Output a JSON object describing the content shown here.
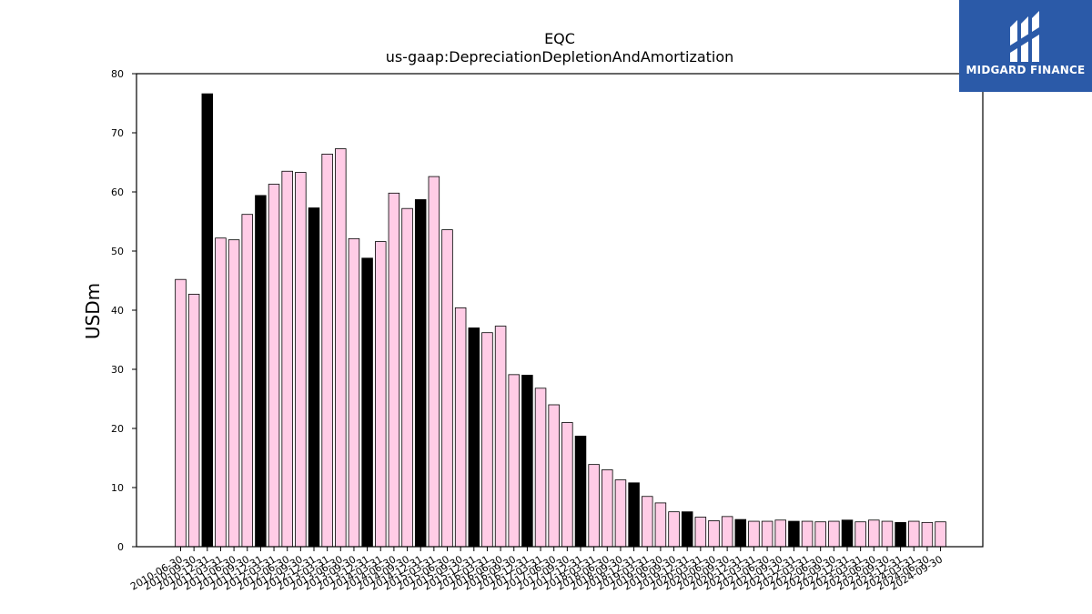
{
  "logo": {
    "text": "MIDGARD FINANCE",
    "background": "#2b5aa8"
  },
  "chart_data": {
    "type": "bar",
    "title": "EQC",
    "subtitle": "us-gaap:DepreciationDepletionAndAmortization",
    "ylabel": "USDm",
    "ylim": [
      0,
      80
    ],
    "yticks": [
      0,
      10,
      20,
      30,
      40,
      50,
      60,
      70,
      80
    ],
    "colors": {
      "quarter": "#ffcce6",
      "year_end": "#000000",
      "edge": "#000000"
    },
    "categories": [
      "2010-06-30",
      "2010-09-30",
      "2010-12-31",
      "2011-03-31",
      "2011-06-30",
      "2011-09-30",
      "2011-12-31",
      "2012-03-31",
      "2012-06-30",
      "2012-09-30",
      "2012-12-31",
      "2013-03-31",
      "2013-06-30",
      "2013-09-30",
      "2013-12-31",
      "2014-03-31",
      "2014-06-30",
      "2014-09-30",
      "2014-12-31",
      "2015-03-31",
      "2015-06-30",
      "2015-09-30",
      "2015-12-31",
      "2016-03-31",
      "2016-06-30",
      "2016-09-30",
      "2016-12-31",
      "2017-03-31",
      "2017-06-30",
      "2017-09-30",
      "2017-12-31",
      "2018-03-31",
      "2018-06-30",
      "2018-09-30",
      "2018-12-31",
      "2019-03-31",
      "2019-06-30",
      "2019-09-30",
      "2019-12-31",
      "2020-03-31",
      "2020-06-30",
      "2020-09-30",
      "2020-12-31",
      "2021-03-31",
      "2021-06-30",
      "2021-09-30",
      "2021-12-31",
      "2022-03-31",
      "2022-06-30",
      "2022-09-30",
      "2022-12-31",
      "2023-03-31",
      "2023-06-30",
      "2023-09-30",
      "2023-12-31",
      "2024-03-31",
      "2024-06-30",
      "2024-09-30"
    ],
    "values": [
      45.2,
      42.7,
      76.6,
      52.2,
      51.9,
      56.2,
      59.4,
      61.3,
      63.5,
      63.3,
      57.3,
      66.4,
      67.3,
      52.1,
      48.8,
      51.6,
      59.8,
      57.2,
      58.7,
      62.6,
      53.6,
      40.4,
      37.0,
      36.2,
      37.3,
      29.1,
      29.0,
      26.8,
      24.0,
      21.0,
      18.7,
      13.9,
      13.0,
      11.3,
      10.8,
      8.5,
      7.4,
      5.9,
      5.9,
      5.0,
      4.4,
      5.1,
      4.6,
      4.3,
      4.3,
      4.5,
      4.3,
      4.3,
      4.2,
      4.3,
      4.5,
      4.2,
      4.5,
      4.3,
      4.1,
      4.3,
      4.1,
      4.2
    ],
    "year_end_flags": [
      0,
      0,
      1,
      0,
      0,
      0,
      1,
      0,
      0,
      0,
      1,
      0,
      0,
      0,
      1,
      0,
      0,
      0,
      1,
      0,
      0,
      0,
      1,
      0,
      0,
      0,
      1,
      0,
      0,
      0,
      1,
      0,
      0,
      0,
      1,
      0,
      0,
      0,
      1,
      0,
      0,
      0,
      1,
      0,
      0,
      0,
      1,
      0,
      0,
      0,
      1,
      0,
      0,
      0,
      1,
      0,
      0,
      0
    ]
  }
}
